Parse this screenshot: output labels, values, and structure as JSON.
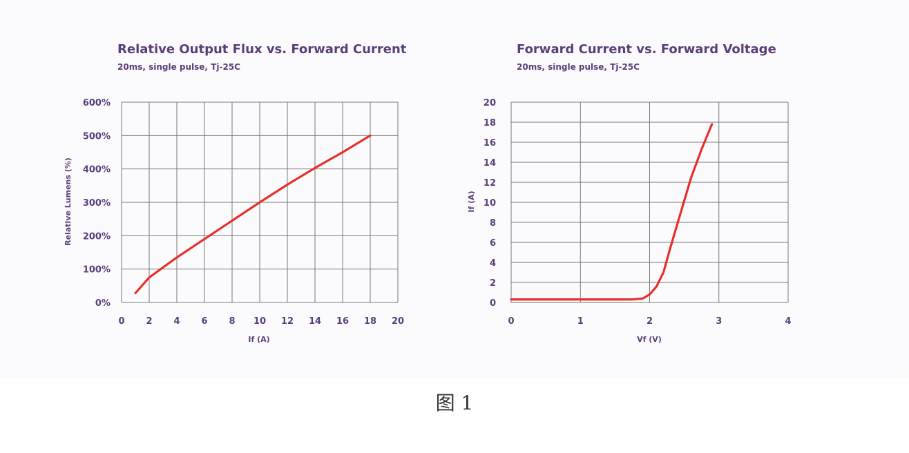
{
  "caption": "图 1",
  "colors": {
    "line": "#e8302b",
    "grid": "#777777",
    "text": "#5a3e78"
  },
  "chart_data": [
    {
      "type": "line",
      "title": "Relative Output Flux vs. Forward Current",
      "subtitle": "20ms, single pulse, Tj-25C",
      "xlabel": "If (A)",
      "ylabel": "Relative Lumens (%)",
      "xlim": [
        0,
        20
      ],
      "ylim": [
        0,
        600
      ],
      "xticks": [
        "0",
        "2",
        "4",
        "6",
        "8",
        "10",
        "12",
        "14",
        "16",
        "18",
        "20"
      ],
      "yticks": [
        "0%",
        "100%",
        "200%",
        "300%",
        "400%",
        "500%",
        "600%"
      ],
      "grid": true,
      "series": [
        {
          "color": "#e8302b",
          "x": [
            1,
            2,
            4,
            6,
            8,
            10,
            12,
            14,
            16,
            18
          ],
          "y": [
            28,
            75,
            135,
            190,
            245,
            300,
            353,
            403,
            450,
            500
          ]
        }
      ]
    },
    {
      "type": "line",
      "title": "Forward Current vs. Forward Voltage",
      "subtitle": "20ms, single pulse, Tj-25C",
      "xlabel": "Vf (V)",
      "ylabel": "If (A)",
      "xlim": [
        0,
        4
      ],
      "ylim": [
        0,
        20
      ],
      "xticks": [
        "0",
        "1",
        "2",
        "3",
        "4"
      ],
      "yticks": [
        "0",
        "2",
        "4",
        "6",
        "8",
        "10",
        "12",
        "14",
        "16",
        "18",
        "20"
      ],
      "grid": true,
      "series": [
        {
          "color": "#e8302b",
          "x": [
            0,
            1,
            1.5,
            1.75,
            1.9,
            2.0,
            2.1,
            2.2,
            2.3,
            2.45,
            2.6,
            2.75,
            2.9
          ],
          "y": [
            0.3,
            0.3,
            0.3,
            0.3,
            0.4,
            0.8,
            1.6,
            3.0,
            5.5,
            9.0,
            12.5,
            15.3,
            17.8
          ]
        }
      ]
    }
  ]
}
